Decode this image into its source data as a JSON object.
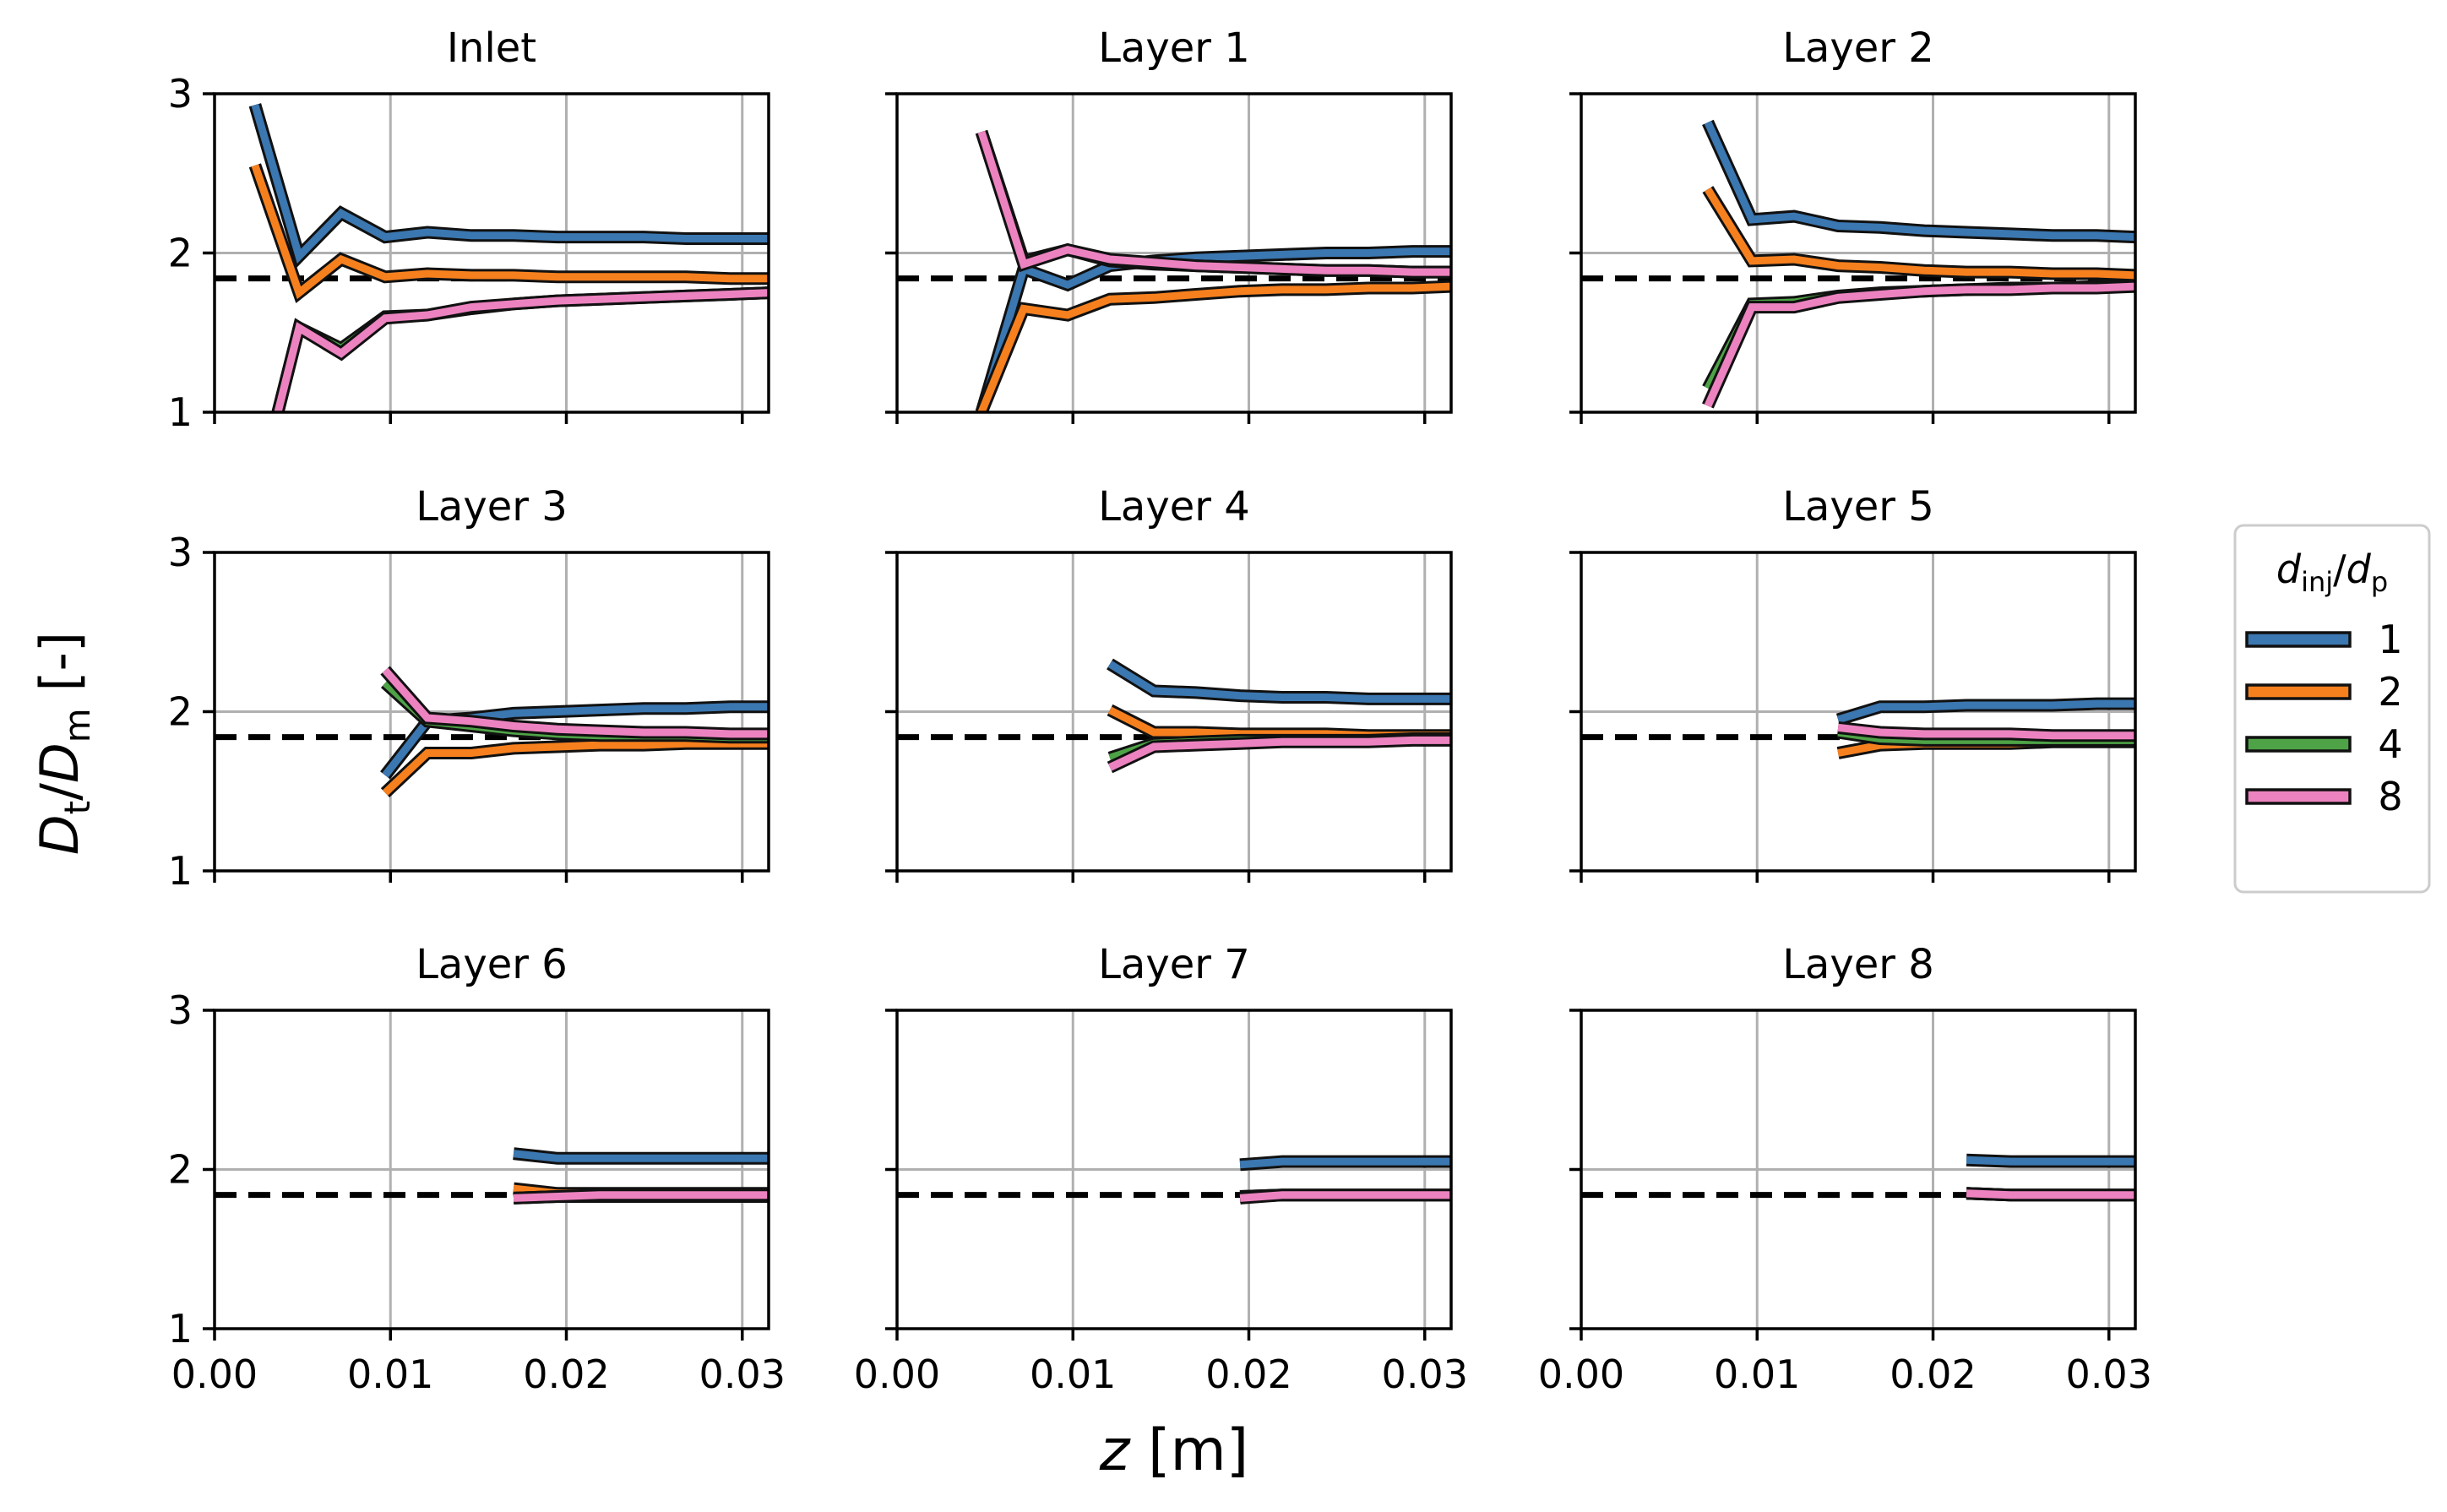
{
  "figure": {
    "ylabel": {
      "main": "D",
      "sub1": "t",
      "slash": "/",
      "main2": "D",
      "sub2": "m",
      "unit": " [-]"
    },
    "xlabel": {
      "var": "z",
      "unit": " [m]"
    },
    "reference_line_value": 1.84,
    "colors": {
      "1": "#3b77b0",
      "2": "#f6801e",
      "4": "#4ea346",
      "8": "#ec83c0",
      "reference": "#000000",
      "grid": "#b0b0b0"
    },
    "legend": {
      "title_main": "d",
      "title_sub1": "inj",
      "title_slash": "/",
      "title_main2": "d",
      "title_sub2": "p",
      "entries": [
        "1",
        "2",
        "4",
        "8"
      ]
    }
  },
  "chart_data": [
    {
      "type": "line",
      "title": "Inlet",
      "xlim": [
        0,
        0.0315
      ],
      "ylim": [
        1,
        3
      ],
      "xticks": [
        "0.00",
        "0.01",
        "0.02",
        "0.03"
      ],
      "yticks": [
        "1",
        "2",
        "3"
      ],
      "series": [
        {
          "name": "1",
          "x": [
            0.0023,
            0.0048,
            0.0072,
            0.0097,
            0.0121,
            0.0146,
            0.017,
            0.0195,
            0.0219,
            0.0244,
            0.0268,
            0.0293,
            0.0315
          ],
          "y": [
            2.93,
            1.98,
            2.25,
            2.1,
            2.13,
            2.11,
            2.11,
            2.1,
            2.1,
            2.1,
            2.09,
            2.09,
            2.09
          ]
        },
        {
          "name": "2",
          "x": [
            0.0023,
            0.0048,
            0.0072,
            0.0097,
            0.0121,
            0.0146,
            0.017,
            0.0195,
            0.0219,
            0.0244,
            0.0268,
            0.0293,
            0.0315
          ],
          "y": [
            2.55,
            1.75,
            1.96,
            1.85,
            1.87,
            1.86,
            1.86,
            1.85,
            1.85,
            1.85,
            1.85,
            1.84,
            1.84
          ]
        },
        {
          "name": "4",
          "x": [
            0.0036,
            0.0048,
            0.0072,
            0.0097,
            0.0121,
            0.0146,
            0.017,
            0.0195,
            0.0219,
            0.0244,
            0.0268,
            0.0293,
            0.0315
          ],
          "y": [
            1.0,
            1.53,
            1.4,
            1.6,
            1.61,
            1.65,
            1.68,
            1.7,
            1.71,
            1.72,
            1.73,
            1.74,
            1.75
          ]
        },
        {
          "name": "8",
          "x": [
            0.0036,
            0.0048,
            0.0072,
            0.0097,
            0.0121,
            0.0146,
            0.017,
            0.0195,
            0.0219,
            0.0244,
            0.0268,
            0.0293,
            0.0315
          ],
          "y": [
            1.0,
            1.53,
            1.37,
            1.59,
            1.61,
            1.66,
            1.68,
            1.7,
            1.71,
            1.72,
            1.73,
            1.74,
            1.75
          ]
        }
      ]
    },
    {
      "type": "line",
      "title": "Layer 1",
      "xlim": [
        0,
        0.0315
      ],
      "ylim": [
        1,
        3
      ],
      "xticks": [
        "0.00",
        "0.01",
        "0.02",
        "0.03"
      ],
      "yticks": [
        "1",
        "2",
        "3"
      ],
      "series": [
        {
          "name": "1",
          "x": [
            0.0048,
            0.0072,
            0.0097,
            0.0121,
            0.0146,
            0.017,
            0.0195,
            0.0219,
            0.0244,
            0.0268,
            0.0293,
            0.0315
          ],
          "y": [
            1.0,
            1.9,
            1.8,
            1.92,
            1.95,
            1.97,
            1.98,
            1.99,
            2.0,
            2.0,
            2.01,
            2.01
          ]
        },
        {
          "name": "2",
          "x": [
            0.0048,
            0.0072,
            0.0097,
            0.0121,
            0.0146,
            0.017,
            0.0195,
            0.0219,
            0.0244,
            0.0268,
            0.0293,
            0.0315
          ],
          "y": [
            1.0,
            1.65,
            1.61,
            1.71,
            1.72,
            1.74,
            1.76,
            1.77,
            1.77,
            1.78,
            1.78,
            1.79
          ]
        },
        {
          "name": "4",
          "x": [
            0.0048,
            0.0072,
            0.0097,
            0.0121,
            0.0146,
            0.017,
            0.0195,
            0.0219,
            0.0244,
            0.0268,
            0.0293,
            0.0315
          ],
          "y": [
            2.76,
            1.95,
            2.02,
            1.95,
            1.93,
            1.92,
            1.91,
            1.9,
            1.89,
            1.89,
            1.88,
            1.88
          ]
        },
        {
          "name": "8",
          "x": [
            0.0048,
            0.0072,
            0.0097,
            0.0121,
            0.0146,
            0.017,
            0.0195,
            0.0219,
            0.0244,
            0.0268,
            0.0293,
            0.0315
          ],
          "y": [
            2.76,
            1.93,
            2.02,
            1.96,
            1.94,
            1.92,
            1.91,
            1.9,
            1.89,
            1.89,
            1.88,
            1.88
          ]
        }
      ]
    },
    {
      "type": "line",
      "title": "Layer 2",
      "xlim": [
        0,
        0.0315
      ],
      "ylim": [
        1,
        3
      ],
      "xticks": [
        "0.00",
        "0.01",
        "0.02",
        "0.03"
      ],
      "yticks": [
        "1",
        "2",
        "3"
      ],
      "series": [
        {
          "name": "1",
          "x": [
            0.0072,
            0.0097,
            0.0121,
            0.0146,
            0.017,
            0.0195,
            0.0219,
            0.0244,
            0.0268,
            0.0293,
            0.0315
          ],
          "y": [
            2.82,
            2.21,
            2.23,
            2.17,
            2.16,
            2.14,
            2.13,
            2.12,
            2.11,
            2.11,
            2.1
          ]
        },
        {
          "name": "2",
          "x": [
            0.0072,
            0.0097,
            0.0121,
            0.0146,
            0.017,
            0.0195,
            0.0219,
            0.0244,
            0.0268,
            0.0293,
            0.0315
          ],
          "y": [
            2.4,
            1.95,
            1.96,
            1.92,
            1.91,
            1.89,
            1.88,
            1.88,
            1.87,
            1.87,
            1.86
          ]
        },
        {
          "name": "4",
          "x": [
            0.0072,
            0.0097,
            0.0121,
            0.0146,
            0.017,
            0.0195,
            0.0219,
            0.0244,
            0.0268,
            0.0293,
            0.0315
          ],
          "y": [
            1.15,
            1.68,
            1.69,
            1.73,
            1.75,
            1.76,
            1.77,
            1.78,
            1.78,
            1.79,
            1.79
          ]
        },
        {
          "name": "8",
          "x": [
            0.0072,
            0.0097,
            0.0121,
            0.0146,
            0.017,
            0.0195,
            0.0219,
            0.0244,
            0.0268,
            0.0293,
            0.0315
          ],
          "y": [
            1.04,
            1.66,
            1.66,
            1.72,
            1.74,
            1.76,
            1.77,
            1.77,
            1.78,
            1.78,
            1.79
          ]
        }
      ]
    },
    {
      "type": "line",
      "title": "Layer 3",
      "xlim": [
        0,
        0.0315
      ],
      "ylim": [
        1,
        3
      ],
      "xticks": [
        "0.00",
        "0.01",
        "0.02",
        "0.03"
      ],
      "yticks": [
        "1",
        "2",
        "3"
      ],
      "series": [
        {
          "name": "1",
          "x": [
            0.0097,
            0.0121,
            0.0146,
            0.017,
            0.0195,
            0.0219,
            0.0244,
            0.0268,
            0.0293,
            0.0315
          ],
          "y": [
            1.6,
            1.94,
            1.96,
            1.99,
            2.0,
            2.01,
            2.02,
            2.02,
            2.03,
            2.03
          ]
        },
        {
          "name": "2",
          "x": [
            0.0097,
            0.0121,
            0.0146,
            0.017,
            0.0195,
            0.0219,
            0.0244,
            0.0268,
            0.0293,
            0.0315
          ],
          "y": [
            1.49,
            1.74,
            1.74,
            1.77,
            1.78,
            1.79,
            1.79,
            1.8,
            1.8,
            1.8
          ]
        },
        {
          "name": "4",
          "x": [
            0.0097,
            0.0121,
            0.0146,
            0.017,
            0.0195,
            0.0219,
            0.0244,
            0.0268,
            0.0293,
            0.0315
          ],
          "y": [
            2.18,
            1.94,
            1.91,
            1.88,
            1.86,
            1.85,
            1.85,
            1.85,
            1.84,
            1.84
          ]
        },
        {
          "name": "8",
          "x": [
            0.0097,
            0.0121,
            0.0146,
            0.017,
            0.0195,
            0.0219,
            0.0244,
            0.0268,
            0.0293,
            0.0315
          ],
          "y": [
            2.26,
            1.96,
            1.94,
            1.91,
            1.89,
            1.88,
            1.87,
            1.87,
            1.86,
            1.86
          ]
        }
      ]
    },
    {
      "type": "line",
      "title": "Layer 4",
      "xlim": [
        0,
        0.0315
      ],
      "ylim": [
        1,
        3
      ],
      "xticks": [
        "0.00",
        "0.01",
        "0.02",
        "0.03"
      ],
      "yticks": [
        "1",
        "2",
        "3"
      ],
      "series": [
        {
          "name": "1",
          "x": [
            0.0121,
            0.0146,
            0.017,
            0.0195,
            0.0219,
            0.0244,
            0.0268,
            0.0293,
            0.0315
          ],
          "y": [
            2.3,
            2.13,
            2.12,
            2.1,
            2.09,
            2.09,
            2.08,
            2.08,
            2.08
          ]
        },
        {
          "name": "2",
          "x": [
            0.0121,
            0.0146,
            0.017,
            0.0195,
            0.0219,
            0.0244,
            0.0268,
            0.0293,
            0.0315
          ],
          "y": [
            2.01,
            1.87,
            1.87,
            1.86,
            1.86,
            1.86,
            1.85,
            1.85,
            1.85
          ]
        },
        {
          "name": "4",
          "x": [
            0.0121,
            0.0146,
            0.017,
            0.0195,
            0.0219,
            0.0244,
            0.0268,
            0.0293,
            0.0315
          ],
          "y": [
            1.71,
            1.8,
            1.81,
            1.82,
            1.82,
            1.82,
            1.82,
            1.83,
            1.83
          ]
        },
        {
          "name": "8",
          "x": [
            0.0121,
            0.0146,
            0.017,
            0.0195,
            0.0219,
            0.0244,
            0.0268,
            0.0293,
            0.0315
          ],
          "y": [
            1.65,
            1.78,
            1.79,
            1.8,
            1.81,
            1.81,
            1.81,
            1.82,
            1.82
          ]
        }
      ]
    },
    {
      "type": "line",
      "title": "Layer 5",
      "xlim": [
        0,
        0.0315
      ],
      "ylim": [
        1,
        3
      ],
      "xticks": [
        "0.00",
        "0.01",
        "0.02",
        "0.03"
      ],
      "yticks": [
        "1",
        "2",
        "3"
      ],
      "series": [
        {
          "name": "1",
          "x": [
            0.0146,
            0.017,
            0.0195,
            0.0219,
            0.0244,
            0.0268,
            0.0293,
            0.0315
          ],
          "y": [
            1.95,
            2.03,
            2.03,
            2.04,
            2.04,
            2.04,
            2.05,
            2.05
          ]
        },
        {
          "name": "2",
          "x": [
            0.0146,
            0.017,
            0.0195,
            0.0219,
            0.0244,
            0.0268,
            0.0293,
            0.0315
          ],
          "y": [
            1.74,
            1.79,
            1.8,
            1.8,
            1.8,
            1.81,
            1.81,
            1.81
          ]
        },
        {
          "name": "4",
          "x": [
            0.0146,
            0.017,
            0.0195,
            0.0219,
            0.0244,
            0.0268,
            0.0293,
            0.0315
          ],
          "y": [
            1.87,
            1.83,
            1.82,
            1.82,
            1.82,
            1.82,
            1.82,
            1.82
          ]
        },
        {
          "name": "8",
          "x": [
            0.0146,
            0.017,
            0.0195,
            0.0219,
            0.0244,
            0.0268,
            0.0293,
            0.0315
          ],
          "y": [
            1.9,
            1.87,
            1.86,
            1.86,
            1.86,
            1.85,
            1.85,
            1.85
          ]
        }
      ]
    },
    {
      "type": "line",
      "title": "Layer 6",
      "xlim": [
        0,
        0.0315
      ],
      "ylim": [
        1,
        3
      ],
      "xticks": [
        "0.00",
        "0.01",
        "0.02",
        "0.03"
      ],
      "yticks": [
        "1",
        "2",
        "3"
      ],
      "series": [
        {
          "name": "1",
          "x": [
            0.017,
            0.0195,
            0.0219,
            0.0244,
            0.0268,
            0.0293,
            0.0315
          ],
          "y": [
            2.1,
            2.07,
            2.07,
            2.07,
            2.07,
            2.07,
            2.07
          ]
        },
        {
          "name": "2",
          "x": [
            0.017,
            0.0195,
            0.0219,
            0.0244,
            0.0268,
            0.0293,
            0.0315
          ],
          "y": [
            1.88,
            1.85,
            1.85,
            1.85,
            1.85,
            1.85,
            1.85
          ]
        },
        {
          "name": "4",
          "x": [
            0.017,
            0.0195,
            0.0219,
            0.0244,
            0.0268,
            0.0293,
            0.0315
          ],
          "y": [
            1.82,
            1.83,
            1.83,
            1.83,
            1.83,
            1.83,
            1.83
          ]
        },
        {
          "name": "8",
          "x": [
            0.017,
            0.0195,
            0.0219,
            0.0244,
            0.0268,
            0.0293,
            0.0315
          ],
          "y": [
            1.82,
            1.83,
            1.84,
            1.84,
            1.84,
            1.84,
            1.84
          ]
        }
      ]
    },
    {
      "type": "line",
      "title": "Layer 7",
      "xlim": [
        0,
        0.0315
      ],
      "ylim": [
        1,
        3
      ],
      "xticks": [
        "0.00",
        "0.01",
        "0.02",
        "0.03"
      ],
      "yticks": [
        "1",
        "2",
        "3"
      ],
      "series": [
        {
          "name": "1",
          "x": [
            0.0195,
            0.0219,
            0.0244,
            0.0268,
            0.0293,
            0.0315
          ],
          "y": [
            2.03,
            2.05,
            2.05,
            2.05,
            2.05,
            2.05
          ]
        },
        {
          "name": "2",
          "x": [
            0.0195,
            0.0219,
            0.0244,
            0.0268,
            0.0293,
            0.0315
          ],
          "y": [
            1.83,
            1.84,
            1.84,
            1.84,
            1.84,
            1.84
          ]
        },
        {
          "name": "4",
          "x": [
            0.0195,
            0.0219,
            0.0244,
            0.0268,
            0.0293,
            0.0315
          ],
          "y": [
            1.83,
            1.84,
            1.84,
            1.84,
            1.84,
            1.84
          ]
        },
        {
          "name": "8",
          "x": [
            0.0195,
            0.0219,
            0.0244,
            0.0268,
            0.0293,
            0.0315
          ],
          "y": [
            1.82,
            1.84,
            1.84,
            1.84,
            1.84,
            1.84
          ]
        }
      ]
    },
    {
      "type": "line",
      "title": "Layer 8",
      "xlim": [
        0,
        0.0315
      ],
      "ylim": [
        1,
        3
      ],
      "xticks": [
        "0.00",
        "0.01",
        "0.02",
        "0.03"
      ],
      "yticks": [
        "1",
        "2",
        "3"
      ],
      "series": [
        {
          "name": "1",
          "x": [
            0.0219,
            0.0244,
            0.0268,
            0.0293,
            0.0315
          ],
          "y": [
            2.06,
            2.05,
            2.05,
            2.05,
            2.05
          ]
        },
        {
          "name": "2",
          "x": [
            0.0219,
            0.0244,
            0.0268,
            0.0293,
            0.0315
          ],
          "y": [
            1.85,
            1.84,
            1.84,
            1.84,
            1.84
          ]
        },
        {
          "name": "4",
          "x": [
            0.0219,
            0.0244,
            0.0268,
            0.0293,
            0.0315
          ],
          "y": [
            1.85,
            1.84,
            1.84,
            1.84,
            1.84
          ]
        },
        {
          "name": "8",
          "x": [
            0.0219,
            0.0244,
            0.0268,
            0.0293,
            0.0315
          ],
          "y": [
            1.85,
            1.84,
            1.84,
            1.84,
            1.84
          ]
        }
      ]
    }
  ]
}
